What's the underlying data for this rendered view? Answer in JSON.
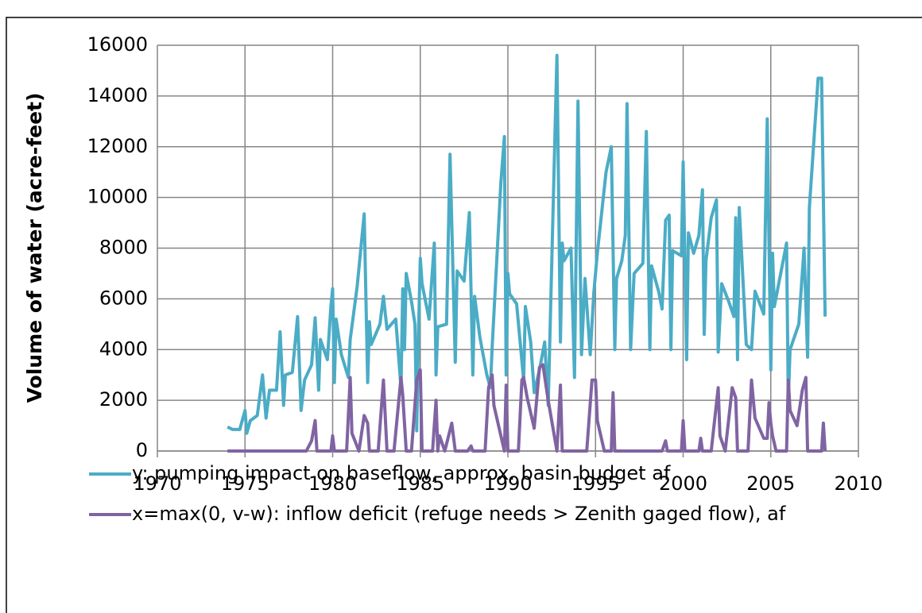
{
  "chart_data": {
    "type": "line",
    "ylabel": "Volume of water (acre-feet)",
    "xlim": [
      1970,
      2010
    ],
    "xticks": [
      1970,
      1975,
      1980,
      1985,
      1990,
      1995,
      2000,
      2005,
      2010
    ],
    "ylim": [
      0,
      16000
    ],
    "yticks": [
      0,
      2000,
      4000,
      6000,
      8000,
      10000,
      12000,
      14000,
      16000
    ],
    "grid": true,
    "legend": "bottom",
    "series": [
      {
        "name": "y: pumping impact on baseflow, approx. basin budget af",
        "color": "#4bacc6",
        "x": [
          1974.0,
          1974.3,
          1974.7,
          1975.0,
          1975.1,
          1975.3,
          1975.7,
          1976.0,
          1976.2,
          1976.4,
          1976.8,
          1977.0,
          1977.2,
          1977.3,
          1977.7,
          1978.0,
          1978.2,
          1978.4,
          1978.8,
          1979.0,
          1979.2,
          1979.3,
          1979.7,
          1979.9,
          1980.0,
          1980.1,
          1980.2,
          1980.5,
          1980.9,
          1981.0,
          1981.4,
          1981.8,
          1982.0,
          1982.1,
          1982.2,
          1982.7,
          1982.9,
          1983.1,
          1983.6,
          1983.9,
          1984.0,
          1984.1,
          1984.2,
          1984.5,
          1984.7,
          1984.8,
          1984.9,
          1985.0,
          1985.1,
          1985.5,
          1985.8,
          1985.9,
          1986.0,
          1986.5,
          1986.7,
          1987.0,
          1987.1,
          1987.5,
          1987.8,
          1988.0,
          1988.1,
          1988.4,
          1988.8,
          1989.0,
          1989.1,
          1989.6,
          1989.8,
          1989.9,
          1990.0,
          1990.1,
          1990.5,
          1990.9,
          1991.0,
          1991.3,
          1991.5,
          1991.8,
          1992.1,
          1992.3,
          1992.8,
          1993.0,
          1993.1,
          1993.2,
          1993.6,
          1993.8,
          1994.0,
          1994.2,
          1994.4,
          1994.7,
          1994.9,
          1995.1,
          1995.6,
          1995.9,
          1996.1,
          1996.2,
          1996.5,
          1996.7,
          1996.8,
          1997.0,
          1997.2,
          1997.7,
          1997.9,
          1998.1,
          1998.2,
          1998.6,
          1998.8,
          1999.0,
          1999.2,
          1999.3,
          1999.4,
          1999.9,
          2000.0,
          2000.2,
          2000.3,
          2000.6,
          2000.9,
          2001.1,
          2001.2,
          2001.3,
          2001.6,
          2001.9,
          2002.0,
          2002.2,
          2002.6,
          2002.9,
          2003.0,
          2003.1,
          2003.2,
          2003.6,
          2003.9,
          2004.1,
          2004.6,
          2004.8,
          2005.0,
          2005.1,
          2005.2,
          2005.9,
          2006.0,
          2006.1,
          2006.6,
          2006.9,
          2007.1,
          2007.2,
          2007.7,
          2007.9,
          2008.1
        ],
        "values": [
          950,
          850,
          850,
          1600,
          700,
          1200,
          1400,
          3000,
          1300,
          2400,
          2400,
          4700,
          1800,
          3000,
          3100,
          5300,
          1600,
          2800,
          3400,
          5250,
          2400,
          4400,
          3600,
          5700,
          6400,
          2700,
          5200,
          3800,
          2900,
          4400,
          6500,
          9350,
          2700,
          5100,
          4200,
          5000,
          6100,
          4800,
          5200,
          2500,
          6400,
          4000,
          7000,
          5900,
          5000,
          800,
          4600,
          7600,
          6600,
          5200,
          8200,
          3000,
          4900,
          5000,
          11700,
          3500,
          7100,
          6700,
          9400,
          3000,
          6100,
          4500,
          3000,
          2500,
          4100,
          10600,
          12400,
          3000,
          7000,
          6200,
          5800,
          2800,
          5700,
          4300,
          2300,
          3200,
          4300,
          1800,
          15600,
          4300,
          8200,
          7500,
          8000,
          2900,
          13800,
          3800,
          6800,
          3800,
          6200,
          7800,
          11000,
          12000,
          4000,
          6800,
          7500,
          8500,
          13700,
          4000,
          7000,
          7400,
          12600,
          4000,
          7300,
          6300,
          5600,
          9100,
          9300,
          4000,
          7900,
          7700,
          11400,
          3600,
          8600,
          7800,
          8500,
          10300,
          4600,
          7500,
          9200,
          9900,
          3900,
          6600,
          5900,
          5300,
          9200,
          3600,
          9600,
          4200,
          4000,
          6300,
          5400,
          13100,
          3200,
          7800,
          5700,
          8200,
          2000,
          4000,
          5000,
          8000,
          3700,
          9600,
          14700,
          14700,
          5300
        ]
      },
      {
        "name": "x=max(0, v-w): inflow deficit (refuge needs > Zenith gaged flow), af",
        "color": "#8064a2",
        "x": [
          1974.0,
          1978.5,
          1978.8,
          1979.0,
          1979.1,
          1979.9,
          1980.0,
          1980.1,
          1980.8,
          1981.0,
          1981.1,
          1981.5,
          1981.8,
          1982.0,
          1982.1,
          1982.6,
          1982.9,
          1983.1,
          1983.5,
          1983.9,
          1984.0,
          1984.2,
          1984.5,
          1984.8,
          1985.0,
          1985.1,
          1985.7,
          1985.9,
          1986.0,
          1986.1,
          1986.4,
          1986.8,
          1987.0,
          1987.7,
          1987.9,
          1988.0,
          1988.7,
          1988.9,
          1989.1,
          1989.2,
          1989.8,
          1989.9,
          1990.0,
          1990.6,
          1990.8,
          1990.9,
          1991.1,
          1991.5,
          1991.8,
          1992.0,
          1992.3,
          1992.8,
          1993.0,
          1993.1,
          1994.5,
          1994.8,
          1995.0,
          1995.1,
          1995.5,
          1995.9,
          1996.0,
          1996.1,
          1998.8,
          1999.0,
          1999.1,
          1999.9,
          2000.0,
          2000.1,
          2000.9,
          2001.0,
          2001.1,
          2001.6,
          2002.0,
          2002.1,
          2002.4,
          2002.8,
          2003.0,
          2003.1,
          2003.7,
          2003.9,
          2004.1,
          2004.6,
          2004.8,
          2004.9,
          2005.0,
          2005.1,
          2005.3,
          2005.9,
          2006.0,
          2006.1,
          2006.5,
          2006.8,
          2007.0,
          2007.1,
          2007.9,
          2008.0,
          2008.1
        ],
        "values": [
          0,
          0,
          400,
          1200,
          0,
          0,
          600,
          0,
          0,
          2900,
          700,
          0,
          1400,
          1100,
          0,
          0,
          2800,
          0,
          0,
          2900,
          2200,
          0,
          0,
          2800,
          3200,
          0,
          0,
          2000,
          0,
          600,
          0,
          1100,
          0,
          0,
          200,
          0,
          0,
          2500,
          3000,
          1800,
          0,
          2600,
          0,
          0,
          2800,
          2900,
          2100,
          900,
          3300,
          3400,
          2000,
          0,
          2600,
          0,
          0,
          2800,
          2800,
          1200,
          0,
          0,
          2300,
          0,
          0,
          400,
          0,
          0,
          1200,
          0,
          0,
          500,
          0,
          0,
          2500,
          600,
          0,
          2500,
          2100,
          0,
          0,
          2800,
          1300,
          500,
          500,
          1900,
          1100,
          600,
          0,
          0,
          2800,
          1600,
          1000,
          2400,
          2900,
          0,
          0,
          1100,
          0
        ]
      }
    ]
  }
}
